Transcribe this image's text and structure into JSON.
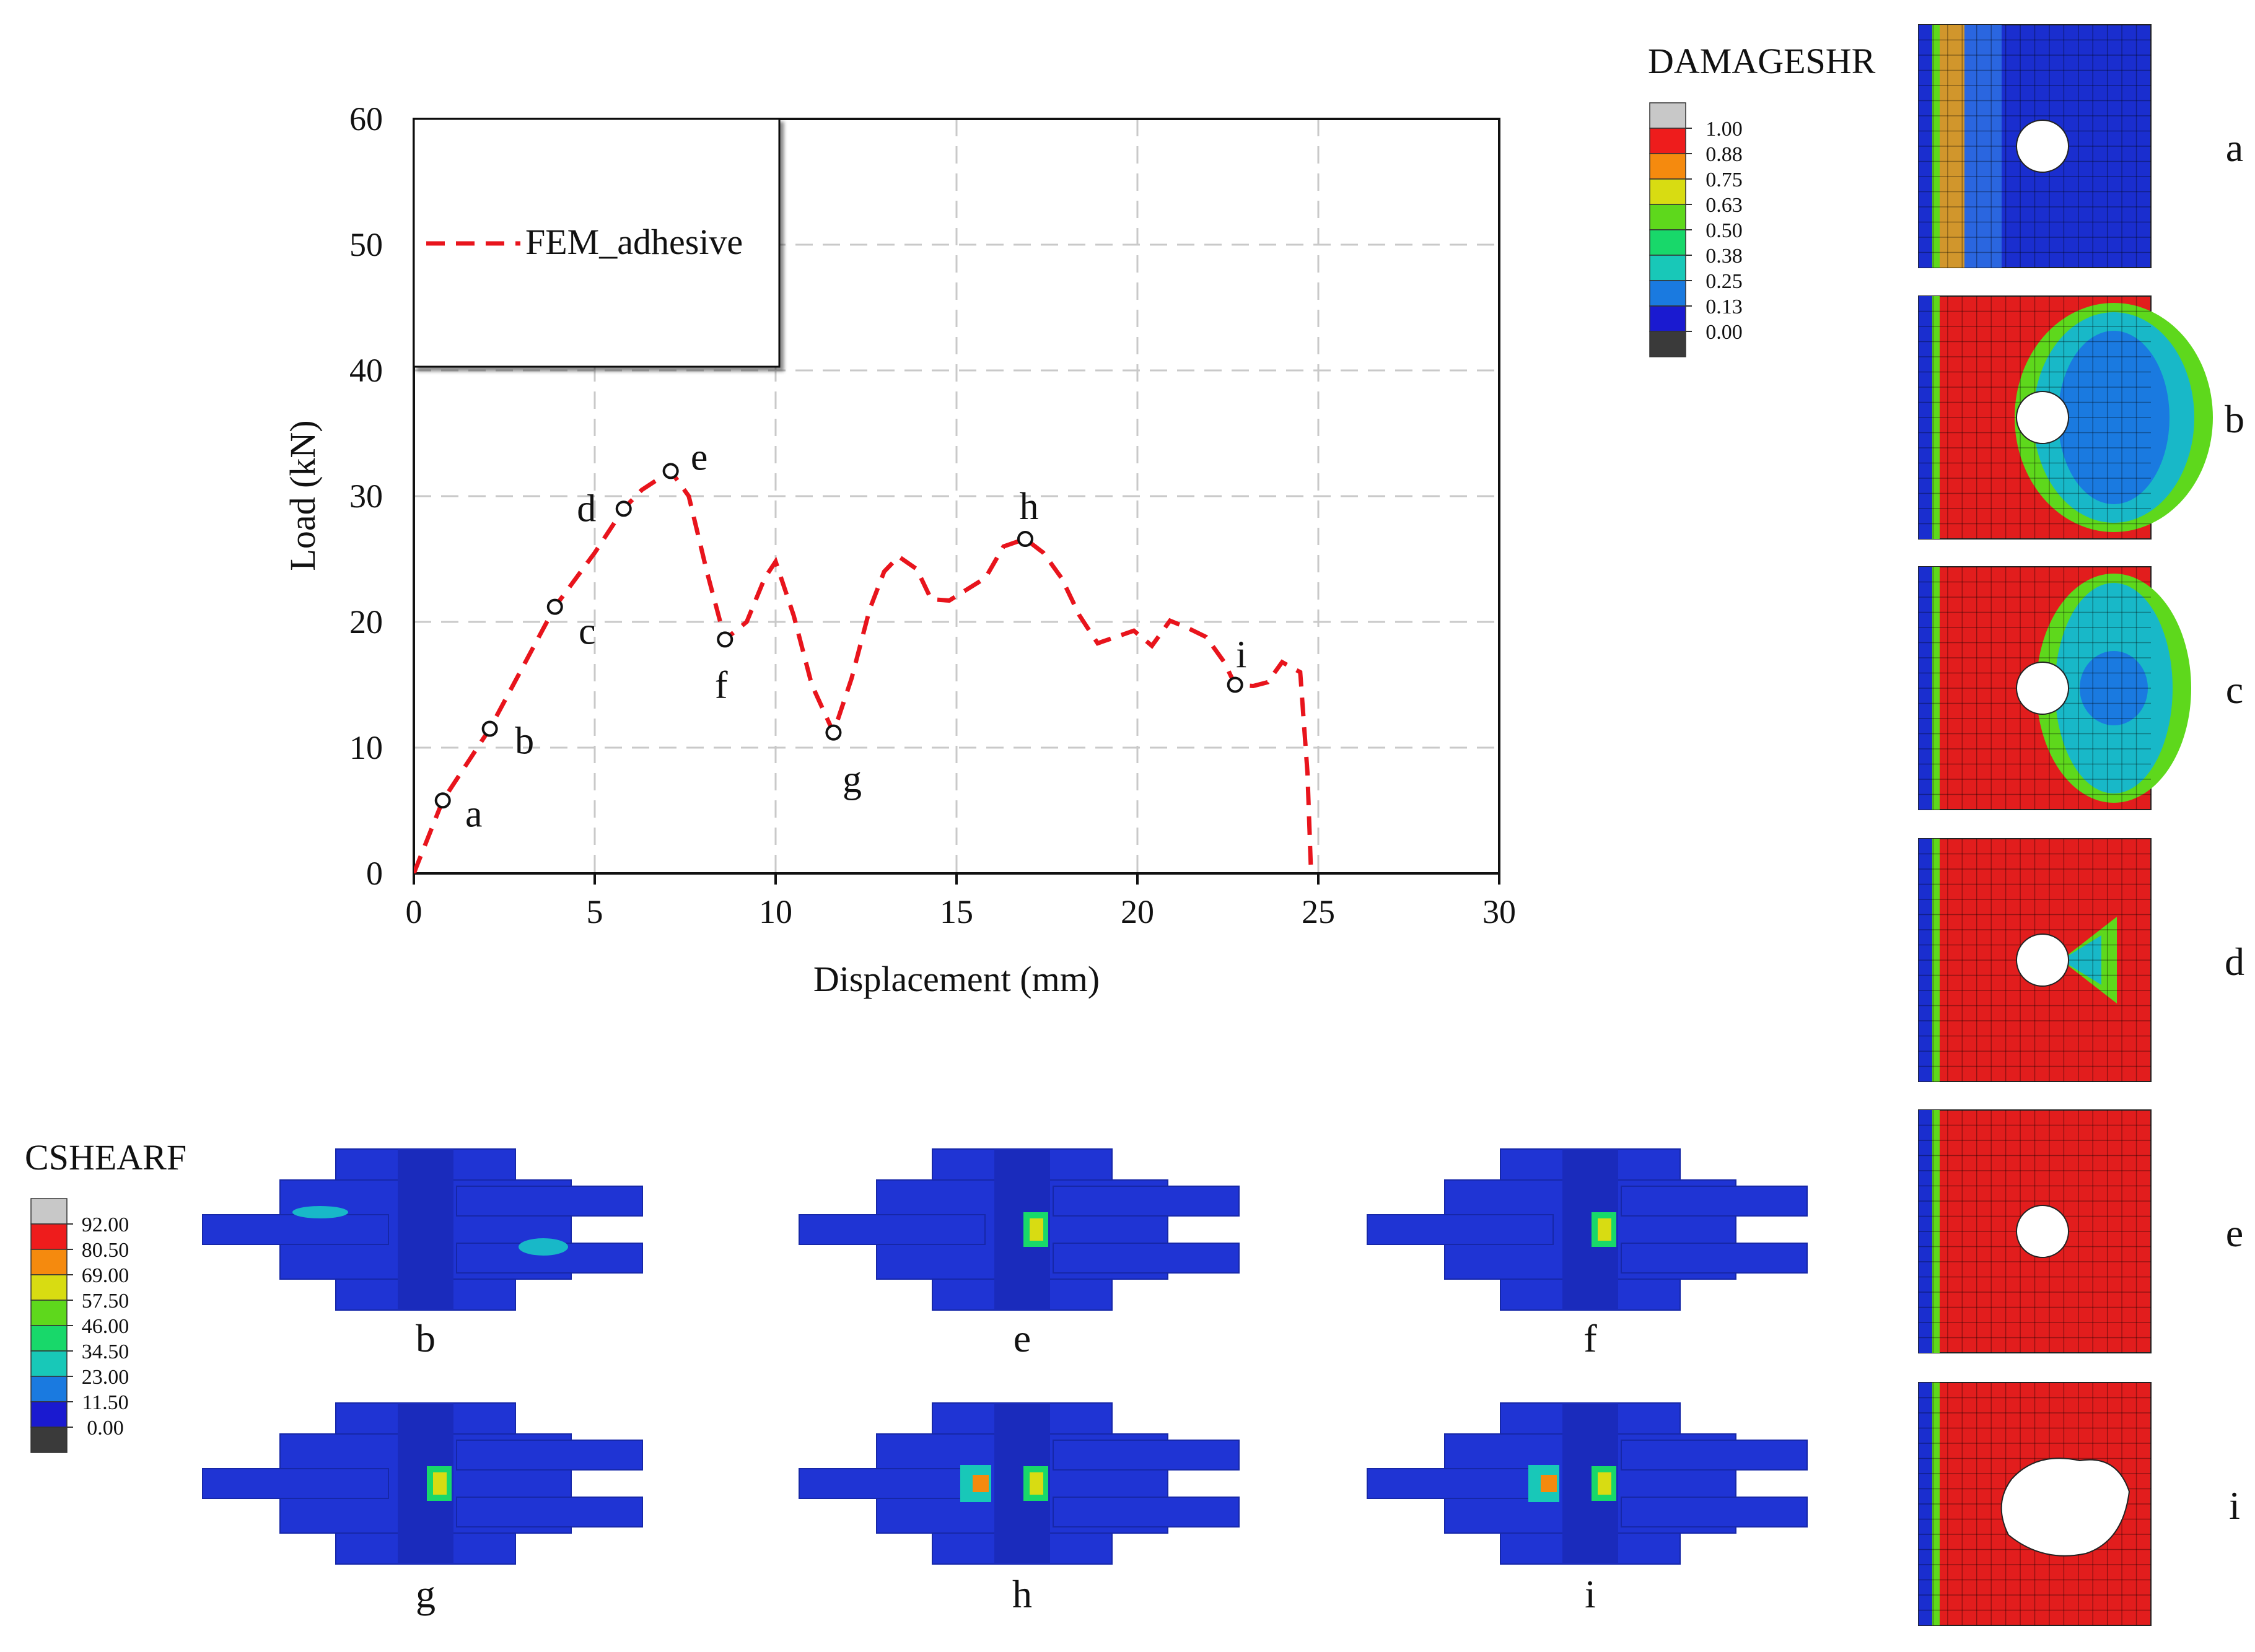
{
  "chart_data": {
    "type": "line",
    "title": "",
    "xlabel": "Displacement (mm)",
    "ylabel": "Load (kN)",
    "xlim": [
      0,
      30
    ],
    "ylim": [
      0,
      60
    ],
    "xticks": [
      "0",
      "5",
      "10",
      "15",
      "20",
      "25",
      "30"
    ],
    "yticks": [
      "0",
      "10",
      "20",
      "30",
      "40",
      "50",
      "60"
    ],
    "grid": true,
    "legend_position": "top-left",
    "series": [
      {
        "name": "FEM_adhesive",
        "color": "#e8141c",
        "style": "dashed",
        "x": [
          0,
          0.8,
          2.1,
          3.9,
          5.0,
          5.8,
          6.3,
          7.1,
          7.6,
          8.1,
          8.6,
          9.2,
          9.7,
          10.0,
          10.5,
          11.0,
          11.6,
          12.1,
          12.6,
          13.0,
          13.4,
          13.9,
          14.3,
          14.8,
          15.3,
          15.8,
          16.3,
          16.9,
          17.4,
          17.9,
          18.4,
          18.9,
          19.4,
          19.9,
          20.4,
          20.9,
          21.4,
          21.9,
          22.4,
          22.7,
          23.2,
          23.6,
          24.0,
          24.5,
          24.7,
          24.8
        ],
        "y": [
          0,
          5.8,
          11.5,
          21.2,
          25.5,
          29.0,
          30.5,
          32.0,
          30.0,
          24.0,
          18.6,
          20.0,
          23.5,
          24.8,
          20.5,
          15.0,
          11.2,
          15.5,
          21.0,
          24.0,
          25.2,
          24.2,
          21.8,
          21.7,
          22.6,
          23.5,
          26.0,
          26.6,
          25.5,
          23.5,
          20.5,
          18.3,
          18.8,
          19.3,
          18.1,
          20.1,
          19.5,
          18.8,
          16.8,
          15.0,
          14.9,
          15.2,
          16.8,
          16.0,
          8.0,
          0
        ]
      }
    ],
    "markers": [
      {
        "label": "a",
        "x": 0.8,
        "y": 5.8
      },
      {
        "label": "b",
        "x": 2.1,
        "y": 11.5
      },
      {
        "label": "c",
        "x": 3.9,
        "y": 21.2
      },
      {
        "label": "d",
        "x": 5.8,
        "y": 29.0
      },
      {
        "label": "e",
        "x": 7.1,
        "y": 32.0
      },
      {
        "label": "f",
        "x": 8.6,
        "y": 18.6
      },
      {
        "label": "g",
        "x": 11.6,
        "y": 11.2
      },
      {
        "label": "h",
        "x": 16.9,
        "y": 26.6
      },
      {
        "label": "i",
        "x": 22.7,
        "y": 15.0
      }
    ]
  },
  "damage_legend": {
    "title": "DAMAGESHR",
    "values": [
      "1.00",
      "0.88",
      "0.75",
      "0.63",
      "0.50",
      "0.38",
      "0.25",
      "0.13",
      "0.00"
    ],
    "colors": [
      "#c8c8c8",
      "#ee1c1c",
      "#f58a0e",
      "#d8dc12",
      "#5ed81c",
      "#18d86a",
      "#18c8b8",
      "#1a7ae0",
      "#1a1ad0",
      "#3a3a3a"
    ]
  },
  "damage_panels": [
    {
      "label": "a",
      "damage_level": 0.05
    },
    {
      "label": "b",
      "damage_level": 0.55
    },
    {
      "label": "c",
      "damage_level": 0.72
    },
    {
      "label": "d",
      "damage_level": 0.93
    },
    {
      "label": "e",
      "damage_level": 1.0
    },
    {
      "label": "i",
      "damage_level": 1.0
    }
  ],
  "shear_legend": {
    "title": "CSHEARF",
    "values": [
      "92.00",
      "80.50",
      "69.00",
      "57.50",
      "46.00",
      "34.50",
      "23.00",
      "11.50",
      "0.00"
    ],
    "colors": [
      "#c8c8c8",
      "#ee1c1c",
      "#f58a0e",
      "#d8dc12",
      "#5ed81c",
      "#18d86a",
      "#18c8b8",
      "#1a7ae0",
      "#1a1ad0",
      "#3a3a3a"
    ]
  },
  "shear_panels": [
    {
      "label": "b"
    },
    {
      "label": "e"
    },
    {
      "label": "f"
    },
    {
      "label": "g"
    },
    {
      "label": "h"
    },
    {
      "label": "i"
    }
  ]
}
